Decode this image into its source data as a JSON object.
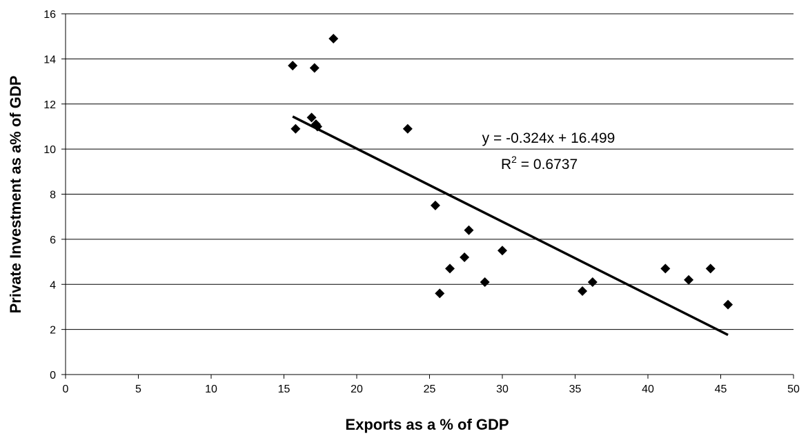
{
  "chart_data": {
    "type": "scatter",
    "title": "",
    "xlabel": "Exports as a % of GDP",
    "ylabel": "Private Investment as a% of GDP",
    "xlim": [
      0,
      50
    ],
    "ylim": [
      0,
      16
    ],
    "x_ticks": [
      0,
      5,
      10,
      15,
      20,
      25,
      30,
      35,
      40,
      45,
      50
    ],
    "y_ticks": [
      0,
      2,
      4,
      6,
      8,
      10,
      12,
      14,
      16
    ],
    "grid": "horizontal",
    "marker": "diamond",
    "points": [
      {
        "x": 15.6,
        "y": 13.7
      },
      {
        "x": 15.8,
        "y": 10.9
      },
      {
        "x": 16.9,
        "y": 11.4
      },
      {
        "x": 17.1,
        "y": 13.6
      },
      {
        "x": 17.2,
        "y": 11.1
      },
      {
        "x": 17.3,
        "y": 11.0
      },
      {
        "x": 18.4,
        "y": 14.9
      },
      {
        "x": 23.5,
        "y": 10.9
      },
      {
        "x": 25.4,
        "y": 7.5
      },
      {
        "x": 25.7,
        "y": 3.6
      },
      {
        "x": 26.4,
        "y": 4.7
      },
      {
        "x": 27.4,
        "y": 5.2
      },
      {
        "x": 27.7,
        "y": 6.4
      },
      {
        "x": 28.8,
        "y": 4.1
      },
      {
        "x": 30.0,
        "y": 5.5
      },
      {
        "x": 35.5,
        "y": 3.7
      },
      {
        "x": 36.2,
        "y": 4.1
      },
      {
        "x": 41.2,
        "y": 4.7
      },
      {
        "x": 42.8,
        "y": 4.2
      },
      {
        "x": 44.3,
        "y": 4.7
      },
      {
        "x": 45.5,
        "y": 3.1
      }
    ],
    "trendline": {
      "slope": -0.324,
      "intercept": 16.499,
      "x_range": [
        15.6,
        45.5
      ],
      "equation_label": "y = -0.324x + 16.499",
      "r2_prefix": "R",
      "r2_sup": "2",
      "r2_suffix": " = 0.6737"
    }
  }
}
